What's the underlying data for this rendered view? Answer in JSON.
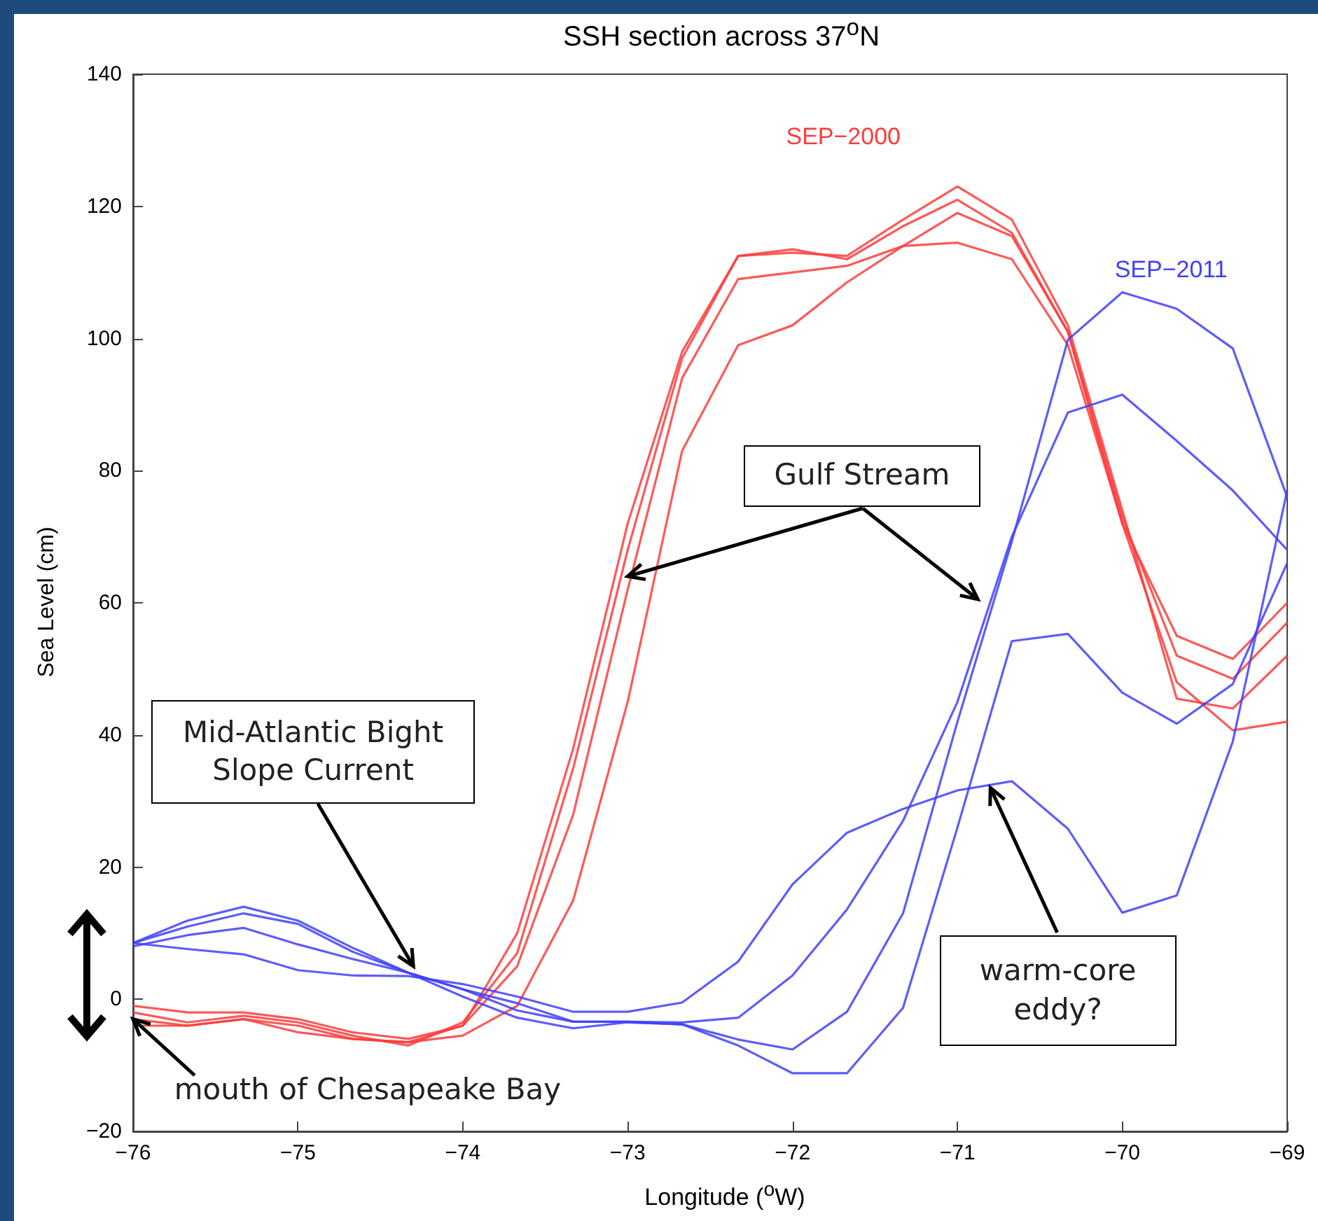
{
  "chart_data": {
    "type": "line",
    "title": "SSH section across 37$^{o}$N",
    "xlabel": "Longitude ($^{o}$W)",
    "ylabel": "Sea Level (cm)",
    "annotations": [
      {
        "text": "Gulf Stream",
        "x": -73,
        "y": 64
      },
      {
        "text": "Mid-Atlantic Bight Slope Current",
        "x": -74.3,
        "y": 5
      },
      {
        "text": "warm-core eddy?",
        "x": -70.8,
        "y": 32
      },
      {
        "text": "mouth of Chesapeake Bay",
        "x": -76,
        "y": -3
      }
    ],
    "x": [
      -76,
      -75.67,
      -75.33,
      -75,
      -74.67,
      -74.33,
      -74,
      -73.67,
      -73.33,
      -73,
      -72.67,
      -72.33,
      -72,
      -71.67,
      -71.33,
      -71,
      -70.67,
      -70.33,
      -70,
      -69.67,
      -69.33,
      -69
    ],
    "series": [
      {
        "name": "SEP−2000",
        "color": "#ff3b3b",
        "values": [
          -1,
          -2,
          -2,
          -3,
          -5,
          -6,
          -4,
          10,
          38,
          72,
          98,
          112.5,
          113,
          112.5,
          118,
          123,
          118,
          102,
          74,
          45.5,
          44,
          52
        ]
      },
      {
        "color": "#ff3b3b",
        "values": [
          -2,
          -3.5,
          -2.5,
          -3.5,
          -5.5,
          -7,
          -3.5,
          7,
          35,
          68,
          97,
          112.5,
          113.5,
          112,
          117,
          121,
          116,
          101,
          73,
          52,
          48.5,
          57
        ]
      },
      {
        "color": "#ff3b3b",
        "values": [
          -3,
          -4,
          -3,
          -4,
          -6,
          -6.5,
          -4,
          5,
          28,
          62,
          94,
          109,
          110,
          111,
          114,
          119,
          115.5,
          101,
          72,
          55,
          51.5,
          60
        ]
      },
      {
        "color": "#ff3b3b",
        "values": [
          -4,
          -4,
          -3,
          -5,
          -6,
          -6.5,
          -5.5,
          -1,
          15,
          45,
          83,
          99,
          102,
          108.5,
          114,
          114.5,
          112,
          99,
          72,
          48,
          40.7,
          42
        ]
      },
      {
        "name": "SEP−2011",
        "color": "#4040ff",
        "values": [
          8.5,
          7.6,
          6.8,
          4.4,
          3.6,
          3.5,
          2.3,
          0.4,
          -1.9,
          -1.9,
          -0.5,
          5.7,
          17.4,
          25.2,
          28.8,
          31.6,
          33,
          25.8,
          13.1,
          15.7,
          39,
          77
        ]
      },
      {
        "color": "#4040ff",
        "values": [
          8.5,
          11,
          13,
          11.4,
          7.2,
          4,
          1.5,
          -1.7,
          -3.4,
          -3.4,
          -3.5,
          -2.8,
          3.6,
          13.6,
          27,
          45,
          70,
          88.8,
          91.5,
          84.5,
          77,
          68
        ]
      },
      {
        "color": "#4040ff",
        "values": [
          8.5,
          11.9,
          14,
          11.9,
          7.8,
          4,
          0.4,
          -2.8,
          -4.4,
          -3.5,
          -3.8,
          -6.1,
          -7.6,
          -1.9,
          13,
          42,
          69.3,
          99.8,
          107,
          104.5,
          98.5,
          76
        ]
      },
      {
        "color": "#4040ff",
        "values": [
          8,
          9.7,
          10.8,
          8.3,
          6.1,
          4,
          1.5,
          -0.6,
          -3.4,
          -3.4,
          -3.8,
          -7,
          -11.2,
          -11.2,
          -1.3,
          26,
          54.2,
          55.3,
          46.4,
          41.7,
          47.7,
          66
        ]
      }
    ],
    "xlim": [
      -76,
      -69
    ],
    "xticks": [
      -76,
      -75,
      -74,
      -73,
      -72,
      -71,
      -70,
      -69
    ],
    "ylim": [
      -20,
      140
    ],
    "yticks": [
      -20,
      0,
      20,
      40,
      60,
      80,
      100,
      120,
      140
    ]
  }
}
